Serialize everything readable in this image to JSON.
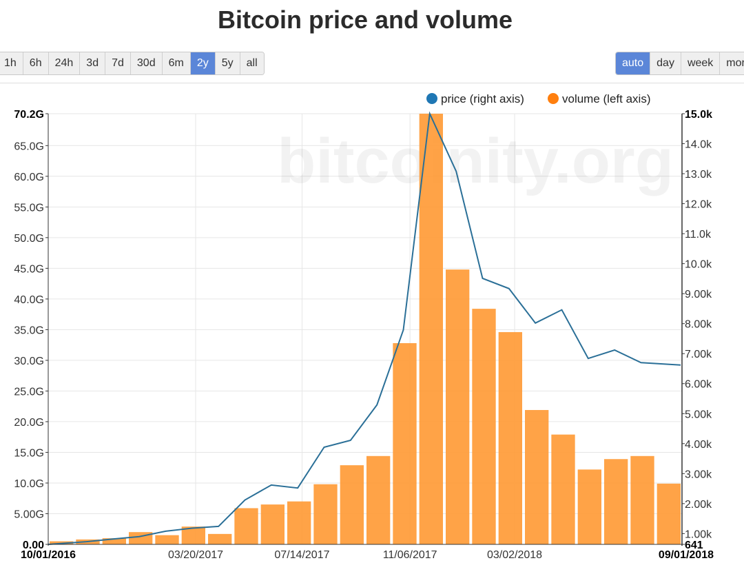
{
  "page": {
    "title": "Bitcoin price and volume"
  },
  "range_buttons": [
    {
      "label": "1h",
      "active": false
    },
    {
      "label": "6h",
      "active": false
    },
    {
      "label": "24h",
      "active": false
    },
    {
      "label": "3d",
      "active": false
    },
    {
      "label": "7d",
      "active": false
    },
    {
      "label": "30d",
      "active": false
    },
    {
      "label": "6m",
      "active": false
    },
    {
      "label": "2y",
      "active": true
    },
    {
      "label": "5y",
      "active": false
    },
    {
      "label": "all",
      "active": false
    }
  ],
  "resolution_buttons": [
    {
      "label": "auto",
      "active": true
    },
    {
      "label": "day",
      "active": false
    },
    {
      "label": "week",
      "active": false
    },
    {
      "label": "mor",
      "active": false
    }
  ],
  "colors": {
    "accent": "#5b86d8",
    "volume": "#ff9933",
    "price": "#2a6f97"
  },
  "chart_data": {
    "type": "bar",
    "watermark": "bitcoinity.org",
    "legend": {
      "placement": "top-right",
      "items": [
        {
          "label": "price (right axis)",
          "color": "#1f77b4"
        },
        {
          "label": "volume (left axis)",
          "color": "#ff7f0e"
        }
      ]
    },
    "grid": true,
    "x": [
      "10/01/2016",
      "11/01/2016",
      "12/01/2016",
      "01/01/2017",
      "02/01/2017",
      "03/01/2017",
      "04/01/2017",
      "05/01/2017",
      "06/01/2017",
      "07/01/2017",
      "08/01/2017",
      "09/01/2017",
      "10/01/2017",
      "11/01/2017",
      "12/01/2017",
      "01/01/2018",
      "02/01/2018",
      "03/01/2018",
      "04/01/2018",
      "05/01/2018",
      "06/01/2018",
      "07/01/2018",
      "08/01/2018",
      "09/01/2018"
    ],
    "x_range": [
      "10/01/2016",
      "09/01/2018"
    ],
    "x_ticks": [
      "10/01/2016",
      "03/20/2017",
      "07/14/2017",
      "11/06/2017",
      "03/02/2018",
      "09/01/2018"
    ],
    "x_tick_fractions": [
      0,
      0.2326,
      0.4005,
      0.5708,
      0.7359,
      1
    ],
    "left_axis": {
      "label": "",
      "range": [
        0,
        70.2
      ],
      "unit": "G",
      "ticks": [
        "0.00",
        "5.00G",
        "10.0G",
        "15.0G",
        "20.0G",
        "25.0G",
        "30.0G",
        "35.0G",
        "40.0G",
        "45.0G",
        "50.0G",
        "55.0G",
        "60.0G",
        "65.0G",
        "70.2G"
      ],
      "tick_values": [
        0,
        5,
        10,
        15,
        20,
        25,
        30,
        35,
        40,
        45,
        50,
        55,
        60,
        65,
        70.2
      ]
    },
    "right_axis": {
      "label": "",
      "range": [
        641,
        15000
      ],
      "ticks": [
        "641",
        "1.00k",
        "2.00k",
        "3.00k",
        "4.00k",
        "5.00k",
        "6.00k",
        "7.00k",
        "8.00k",
        "9.00k",
        "10.0k",
        "11.0k",
        "12.0k",
        "13.0k",
        "14.0k",
        "15.0k"
      ],
      "tick_values": [
        641,
        1000,
        2000,
        3000,
        4000,
        5000,
        6000,
        7000,
        8000,
        9000,
        10000,
        11000,
        12000,
        13000,
        14000,
        15000
      ]
    },
    "series": [
      {
        "name": "volume (left axis)",
        "type": "bar",
        "axis": "left",
        "values": [
          0.5,
          0.8,
          1.0,
          2.0,
          1.5,
          2.9,
          1.7,
          5.9,
          6.5,
          7.0,
          9.8,
          12.9,
          14.4,
          32.8,
          70.2,
          44.8,
          38.4,
          34.6,
          21.9,
          17.9,
          12.2,
          13.9,
          14.4,
          9.9
        ]
      },
      {
        "name": "price (right axis)",
        "type": "line",
        "axis": "right",
        "values": [
          641,
          730,
          820,
          900,
          1080,
          1180,
          1240,
          2120,
          2620,
          2520,
          3880,
          4110,
          5290,
          7790,
          15000,
          13080,
          9510,
          9170,
          8020,
          8460,
          6840,
          7120,
          6700,
          6620
        ]
      }
    ]
  }
}
